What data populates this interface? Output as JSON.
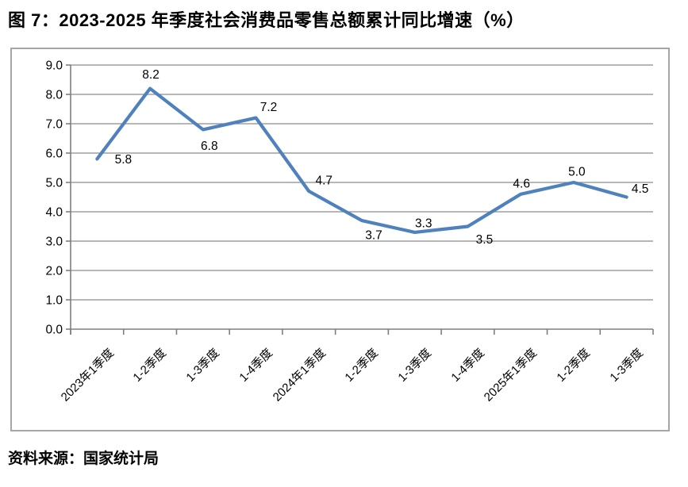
{
  "figure": {
    "title": "图 7：2023-2025 年季度社会消费品零售总额累计同比增速（%）",
    "source": "资料来源：国家统计局"
  },
  "chart_data": {
    "type": "line",
    "title": "图 7：2023-2025 年季度社会消费品零售总额累计同比增速（%）",
    "categories": [
      "2023年1季度",
      "1-2季度",
      "1-3季度",
      "1-4季度",
      "2024年1季度",
      "1-2季度",
      "1-3季度",
      "1-4季度",
      "2025年1季度",
      "1-2季度",
      "1-3季度"
    ],
    "values": [
      5.8,
      8.2,
      6.8,
      7.2,
      4.7,
      3.7,
      3.3,
      3.5,
      4.6,
      5.0,
      4.5
    ],
    "data_labels": [
      "5.8",
      "8.2",
      "6.8",
      "7.2",
      "4.7",
      "3.7",
      "3.3",
      "3.5",
      "4.6",
      "5.0",
      "4.5"
    ],
    "xlabel": "",
    "ylabel": "",
    "ylim": [
      0,
      9
    ],
    "y_tick_step": 1,
    "y_tick_labels": [
      "0.0",
      "1.0",
      "2.0",
      "3.0",
      "4.0",
      "5.0",
      "6.0",
      "7.0",
      "8.0",
      "9.0"
    ],
    "grid": true,
    "legend_position": "none",
    "colors": {
      "line": "#4F81BD",
      "gridline": "#8c8c8c",
      "axis": "#7f7f7f",
      "chart_border": "#a6a6a6",
      "text": "#000000"
    }
  }
}
